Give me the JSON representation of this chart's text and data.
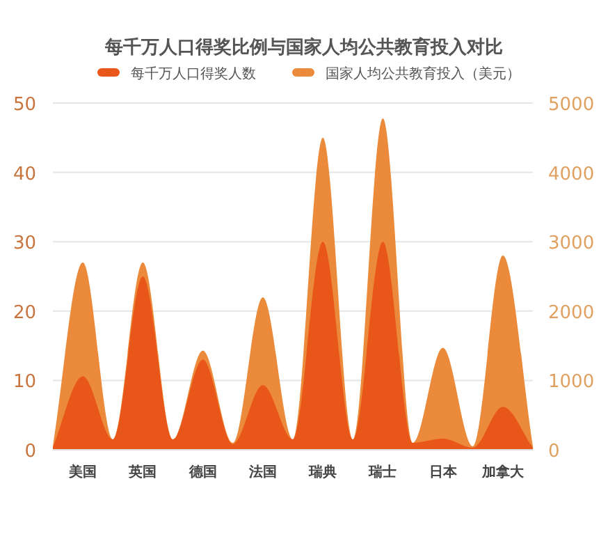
{
  "chart_data": {
    "type": "area",
    "title": "每千万人口得奖比例与国家人均公共教育投入对比",
    "categories": [
      null,
      "美国",
      null,
      "英国",
      null,
      "德国",
      null,
      "法国",
      null,
      "瑞典",
      null,
      "瑞士",
      null,
      "日本",
      null,
      "加拿大",
      null
    ],
    "series": [
      {
        "name": "国家人均公共教育投入（美元）",
        "color": "#eb8a3a",
        "axis": "y2",
        "values": [
          50,
          2700,
          150,
          2700,
          150,
          1430,
          100,
          2200,
          150,
          4500,
          150,
          4780,
          100,
          1470,
          50,
          2800,
          50
        ]
      },
      {
        "name": "每千万人口得奖人数",
        "color": "#e8561a",
        "values": [
          0.3,
          10.6,
          1.5,
          25,
          1.5,
          13,
          0.8,
          9.3,
          1.5,
          30,
          1.5,
          30,
          1,
          1.6,
          0.3,
          6.2,
          0.3
        ]
      }
    ],
    "ylim": [
      0,
      50
    ],
    "yticks": [
      0,
      10,
      20,
      30,
      40,
      50
    ],
    "y2lim": [
      0,
      5000
    ],
    "y2ticks": [
      0,
      1000,
      2000,
      3000,
      4000,
      5000
    ],
    "grid": "y",
    "legend": "top"
  }
}
